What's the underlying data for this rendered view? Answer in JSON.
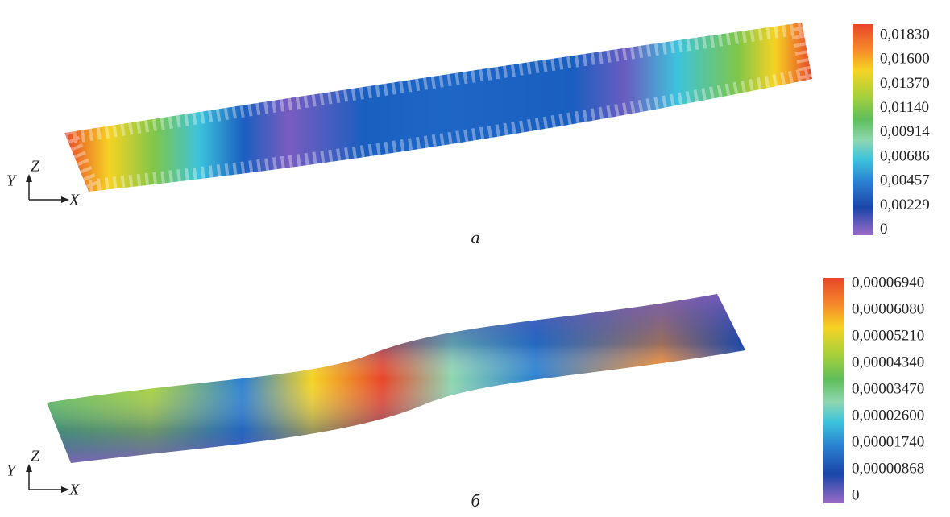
{
  "panels": [
    {
      "caption": "а",
      "axes": {
        "z": "Z",
        "y": "Y",
        "x": "X"
      },
      "legend": [
        "0,01830",
        "0,01600",
        "0,01370",
        "0,01140",
        "0,00914",
        "0,00686",
        "0,00457",
        "0,00229",
        "0"
      ]
    },
    {
      "caption": "б",
      "axes": {
        "z": "Z",
        "y": "Y",
        "x": "X"
      },
      "legend": [
        "0,00006940",
        "0,00006080",
        "0,00005210",
        "0,00004340",
        "0,00003470",
        "0,00002600",
        "0,00001740",
        "0,00000868",
        "0"
      ]
    }
  ]
}
